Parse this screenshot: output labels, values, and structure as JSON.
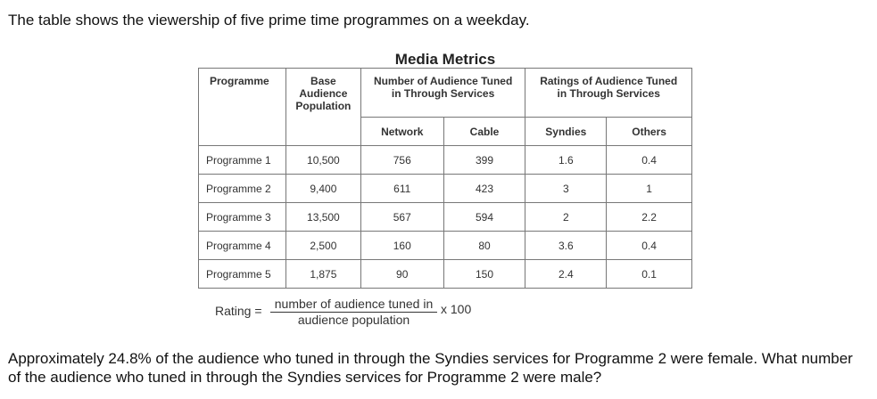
{
  "intro": "The table shows the viewership of five prime time programmes on a weekday.",
  "table": {
    "caption": "Media Metrics",
    "headers": {
      "programme": "Programme",
      "base": [
        "Base",
        "Audience",
        "Population"
      ],
      "tuned": [
        "Number of Audience Tuned",
        "in Through Services"
      ],
      "ratings": [
        "Ratings of Audience Tuned",
        "in Through Services"
      ],
      "network": "Network",
      "cable": "Cable",
      "syndies": "Syndies",
      "others": "Others"
    },
    "rows": [
      [
        "Programme 1",
        "10,500",
        "756",
        "399",
        "1.6",
        "0.4"
      ],
      [
        "Programme 2",
        "9,400",
        "611",
        "423",
        "3",
        "1"
      ],
      [
        "Programme 3",
        "13,500",
        "567",
        "594",
        "2",
        "2.2"
      ],
      [
        "Programme 4",
        "2,500",
        "160",
        "80",
        "3.6",
        "0.4"
      ],
      [
        "Programme 5",
        "1,875",
        "90",
        "150",
        "2.4",
        "0.1"
      ]
    ]
  },
  "formula": {
    "label": "Rating =",
    "numerator": "number of audience tuned in",
    "denominator": "audience population",
    "multiplier": "x 100"
  },
  "question": "Approximately 24.8% of the audience who tuned in through the Syndies services for Programme 2 were female. What number of the audience who tuned in through the Syndies services for Programme 2 were male?"
}
